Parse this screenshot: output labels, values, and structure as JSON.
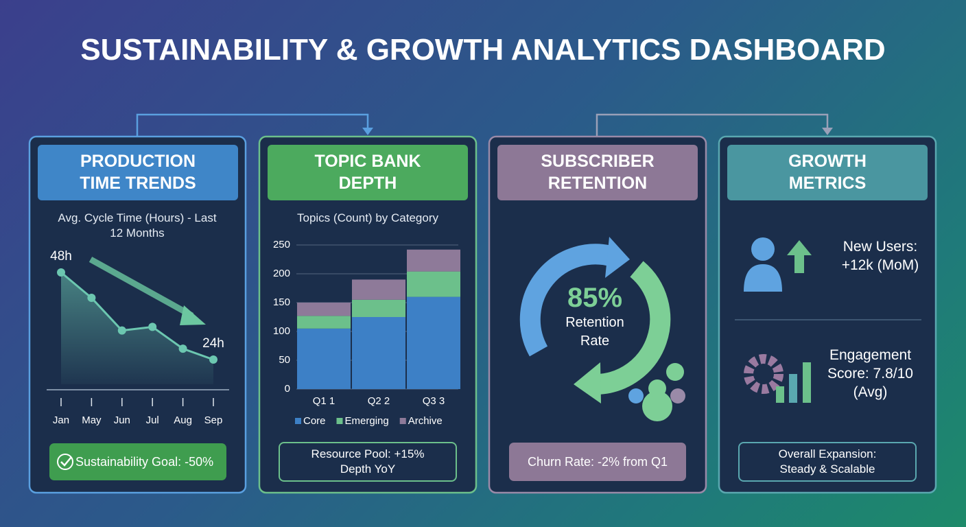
{
  "title": "SUSTAINABILITY & GROWTH ANALYTICS DASHBOARD",
  "panels": [
    {
      "header": "PRODUCTION TIME TRENDS",
      "footer": "Sustainability Goal: -50%"
    },
    {
      "header": "TOPIC BANK DEPTH",
      "footer": "Resource Pool: +15% Depth YoY"
    },
    {
      "header": "SUBSCRIBER RETENTION",
      "retention_value": "85%",
      "retention_label": "Retention Rate",
      "footer": "Churn Rate: -2% from Q1"
    },
    {
      "header": "GROWTH METRICS",
      "metrics": [
        "New Users: +12k (MoM)",
        "Engagement Score: 7.8/10 (Avg)"
      ],
      "footer": "Overall Expansion: Steady & Scalable"
    }
  ],
  "chart_data": [
    {
      "type": "line",
      "title": "Avg. Cycle Time (Hours) - Last 12 Months",
      "categories": [
        "Jan",
        "May",
        "Jun",
        "Jul",
        "Aug",
        "Sep"
      ],
      "values": [
        48,
        41,
        32,
        33,
        27,
        24
      ],
      "value_labels": [
        "48h",
        null,
        null,
        null,
        null,
        "24h"
      ],
      "color": "#6cc7b0"
    },
    {
      "type": "bar",
      "stacked": true,
      "title": "Topics (Count) by Category",
      "categories": [
        "Q1 1",
        "Q2 2",
        "Q3 3"
      ],
      "series": [
        {
          "name": "Core",
          "color": "#3d80c6",
          "values": [
            105,
            125,
            160
          ]
        },
        {
          "name": "Emerging",
          "color": "#6cc08b",
          "values": [
            22,
            30,
            44
          ]
        },
        {
          "name": "Archive",
          "color": "#8e7a99",
          "values": [
            23,
            35,
            38
          ]
        }
      ],
      "ylim": [
        0,
        250
      ],
      "yticks": [
        0,
        50,
        100,
        150,
        200,
        250
      ],
      "grid": true
    }
  ]
}
